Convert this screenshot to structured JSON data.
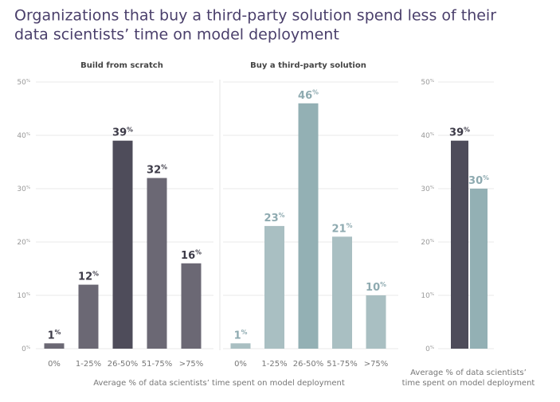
{
  "chart_data": [
    {
      "type": "bar",
      "title": [
        "Organizations that buy a third-party solution spend less of their",
        "data scientists’ time on model deployment"
      ],
      "subtitle": "Build from scratch",
      "xlabel": "Average % of data scientists’ time spent on model deployment",
      "categories": [
        "0%",
        "1-25%",
        "26-50%",
        "51-75%",
        ">75%"
      ],
      "values": [
        1,
        12,
        39,
        32,
        16
      ],
      "value_labels": [
        "1%",
        "12%",
        "39%",
        "32%",
        "16%"
      ],
      "colors": [
        "#6b6874",
        "#6b6874",
        "#4e4c5a",
        "#6b6874",
        "#6b6874"
      ],
      "label_color": "#3d3b48",
      "ylim": [
        0,
        50
      ],
      "yticks": [
        {
          "value": 0,
          "label": "0%"
        },
        {
          "value": 10,
          "label": "10%"
        },
        {
          "value": 20,
          "label": "20%"
        },
        {
          "value": 30,
          "label": "30%"
        },
        {
          "value": 40,
          "label": "40%"
        },
        {
          "value": 50,
          "label": "50%"
        }
      ],
      "grid": true
    },
    {
      "type": "bar",
      "subtitle": "Buy a third-party solution",
      "categories": [
        "0%",
        "1-25%",
        "26-50%",
        "51-75%",
        ">75%"
      ],
      "values": [
        1,
        23,
        46,
        21,
        10
      ],
      "value_labels": [
        "1%",
        "23%",
        "46%",
        "21%",
        "10%"
      ],
      "colors": [
        "#a9bfc2",
        "#a9bfc2",
        "#93b0b4",
        "#a9bfc2",
        "#a9bfc2"
      ],
      "label_color": "#8eaab0",
      "subtitle_color": "#8eaab0",
      "ylim": [
        0,
        50
      ],
      "grid": true
    },
    {
      "type": "bar",
      "xlabel": [
        "Average % of data scientists’",
        "time spent on model deployment"
      ],
      "categories": [
        null,
        null
      ],
      "values": [
        39,
        30
      ],
      "value_labels": [
        "39%",
        "30%"
      ],
      "colors": [
        "#4e4c5a",
        "#93b0b4"
      ],
      "label_colors": [
        "#3d3b48",
        "#8eaab0"
      ],
      "ylim": [
        0,
        50
      ],
      "yticks": [
        {
          "value": 0,
          "label": "0%"
        },
        {
          "value": 10,
          "label": "10%"
        },
        {
          "value": 20,
          "label": "20%"
        },
        {
          "value": 30,
          "label": "30%"
        },
        {
          "value": 40,
          "label": "40%"
        },
        {
          "value": 50,
          "label": "50%"
        }
      ],
      "grid": true
    }
  ]
}
